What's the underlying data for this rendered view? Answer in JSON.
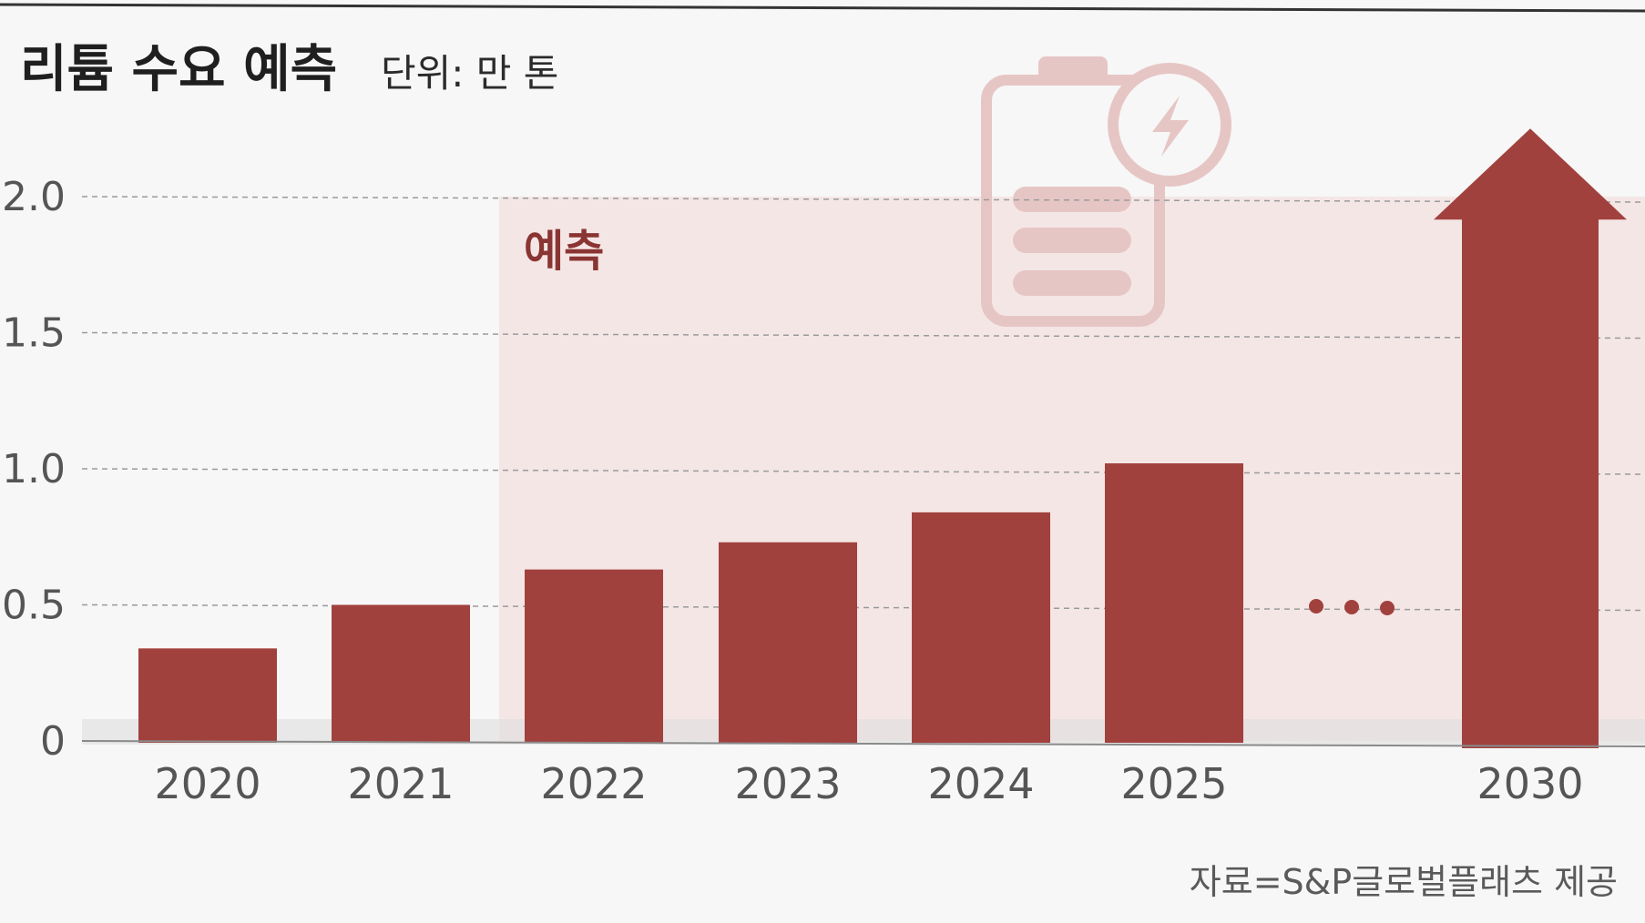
{
  "chart_data": {
    "type": "bar",
    "title": "리튬 수요 예측",
    "unit": "단위: 만 톤",
    "categories": [
      "2020",
      "2021",
      "2022",
      "2023",
      "2024",
      "2025",
      "2030"
    ],
    "values": [
      0.34,
      0.5,
      0.63,
      0.73,
      0.84,
      1.02,
      2.25
    ],
    "yticks": [
      "0",
      "0.5",
      "1.0",
      "1.5",
      "2.0"
    ],
    "ytick_values": [
      0,
      0.5,
      1.0,
      1.5,
      2.0
    ],
    "ylim": [
      0,
      2.0
    ],
    "forecast_label": "예측",
    "forecast_start_category": "2022",
    "break_marker": "• • •",
    "grid": true,
    "source": "자료=S&P글로벌플래츠 제공"
  },
  "colors": {
    "bar": "#a1413e",
    "forecast_band": "#f5e6e6",
    "background": "#f7f7f7",
    "grid": "#9a9a9a",
    "battery_icon": "#e6c6c5",
    "forecast_text": "#8a3533"
  },
  "icons": {
    "battery": "battery-charging-icon"
  }
}
